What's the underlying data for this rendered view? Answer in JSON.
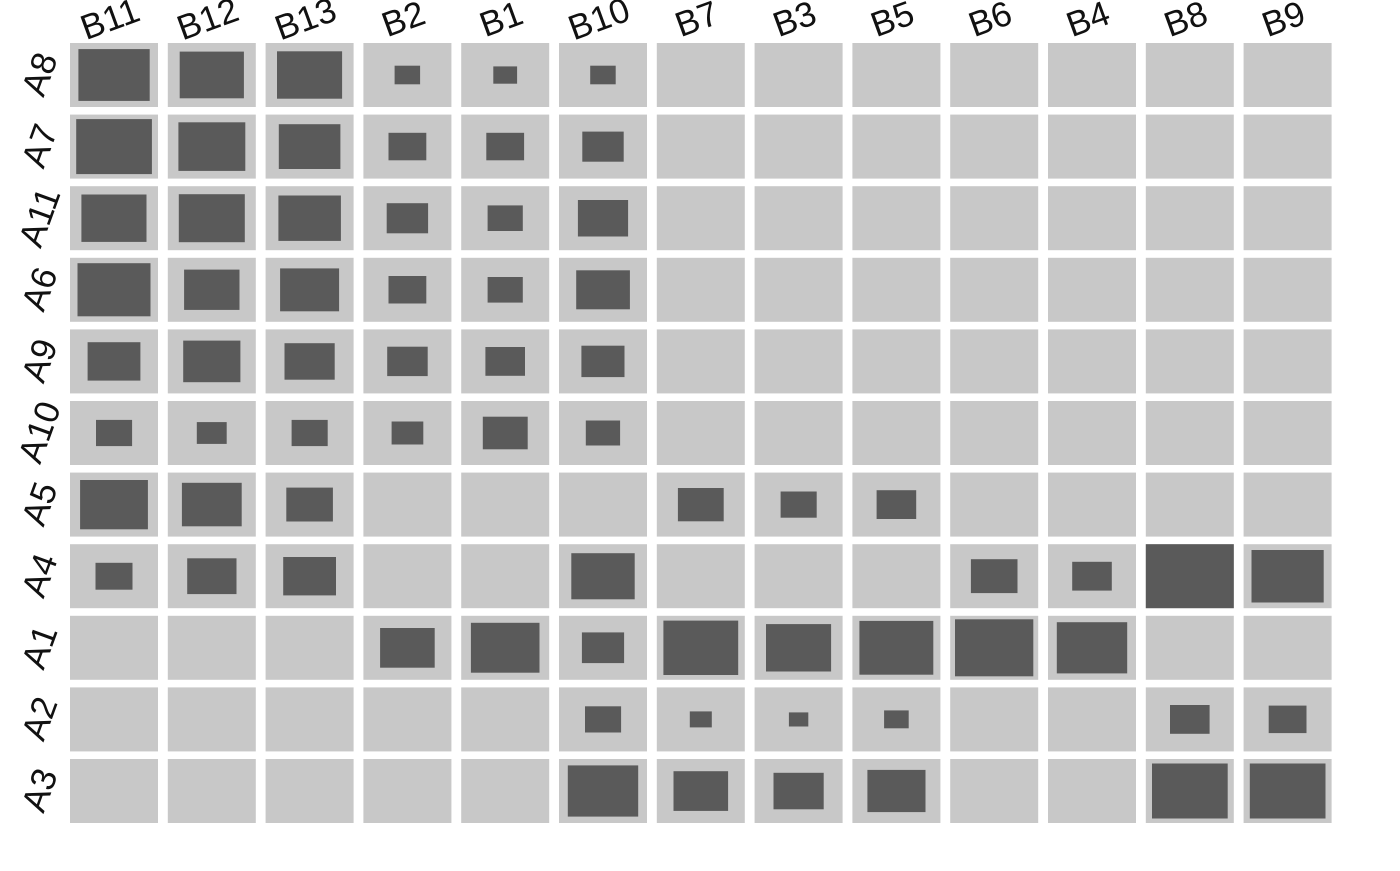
{
  "colors": {
    "cell_background": "#c8c8c8",
    "mark": "#5a5a5a",
    "text": "#111111",
    "page_background": "#ffffff"
  },
  "chart_data": {
    "type": "heatmap",
    "encoding": "square size within each cell is proportional to value (0-1 relative scale); empty cell = no mark",
    "columns": [
      "B11",
      "B12",
      "B13",
      "B2",
      "B1",
      "B10",
      "B7",
      "B3",
      "B5",
      "B6",
      "B4",
      "B8",
      "B9"
    ],
    "rows": [
      "A8",
      "A7",
      "A11",
      "A6",
      "A9",
      "A10",
      "A5",
      "A4",
      "A1",
      "A2",
      "A3"
    ],
    "values": [
      [
        0.81,
        0.73,
        0.74,
        0.29,
        0.27,
        0.29,
        0,
        0,
        0,
        0,
        0,
        0,
        0
      ],
      [
        0.86,
        0.76,
        0.7,
        0.43,
        0.43,
        0.47,
        0,
        0,
        0,
        0,
        0,
        0,
        0
      ],
      [
        0.74,
        0.75,
        0.71,
        0.47,
        0.4,
        0.57,
        0,
        0,
        0,
        0,
        0,
        0,
        0
      ],
      [
        0.83,
        0.63,
        0.67,
        0.43,
        0.4,
        0.61,
        0,
        0,
        0,
        0,
        0,
        0,
        0
      ],
      [
        0.6,
        0.65,
        0.57,
        0.46,
        0.45,
        0.49,
        0,
        0,
        0,
        0,
        0,
        0,
        0
      ],
      [
        0.41,
        0.34,
        0.41,
        0.36,
        0.51,
        0.39,
        0,
        0,
        0,
        0,
        0,
        0,
        0
      ],
      [
        0.77,
        0.68,
        0.53,
        0,
        0,
        0,
        0.52,
        0.41,
        0.45,
        0,
        0,
        0,
        0
      ],
      [
        0.42,
        0.56,
        0.6,
        0,
        0,
        0.72,
        0,
        0,
        0,
        0.53,
        0.45,
        1.0,
        0.82
      ],
      [
        0,
        0,
        0,
        0.62,
        0.78,
        0.48,
        0.85,
        0.74,
        0.84,
        0.89,
        0.8,
        0,
        0
      ],
      [
        0,
        0,
        0,
        0,
        0,
        0.41,
        0.25,
        0.22,
        0.28,
        0,
        0,
        0.45,
        0.43
      ],
      [
        0,
        0,
        0,
        0,
        0,
        0.8,
        0.62,
        0.57,
        0.66,
        0,
        0,
        0.86,
        0.86
      ]
    ]
  }
}
